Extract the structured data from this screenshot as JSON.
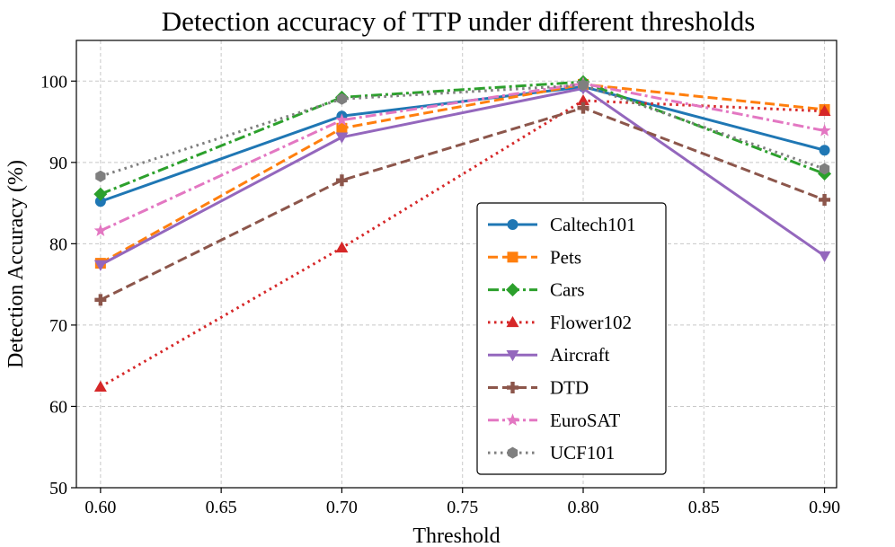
{
  "chart_data": {
    "type": "line",
    "title": "Detection accuracy of TTP under different thresholds",
    "xlabel": "Threshold",
    "ylabel": "Detection Accuracy (%)",
    "x": [
      0.6,
      0.7,
      0.8,
      0.9
    ],
    "xlim": [
      0.59,
      0.905
    ],
    "ylim": [
      50,
      105
    ],
    "xticks": [
      0.6,
      0.65,
      0.7,
      0.75,
      0.8,
      0.85,
      0.9
    ],
    "xtick_labels": [
      "0.60",
      "0.65",
      "0.70",
      "0.75",
      "0.80",
      "0.85",
      "0.90"
    ],
    "yticks": [
      50,
      60,
      70,
      80,
      90,
      100
    ],
    "ytick_labels": [
      "50",
      "60",
      "70",
      "80",
      "90",
      "100"
    ],
    "grid": true,
    "legend_position": "center-right",
    "series": [
      {
        "name": "Caltech101",
        "values": [
          85.2,
          95.7,
          99.3,
          91.5
        ],
        "color": "#1f77b4",
        "dash": "solid",
        "marker": "circle"
      },
      {
        "name": "Pets",
        "values": [
          77.6,
          94.2,
          99.6,
          96.5
        ],
        "color": "#ff7f0e",
        "dash": "dashed",
        "marker": "square"
      },
      {
        "name": "Cars",
        "values": [
          86.1,
          98.0,
          99.9,
          88.6
        ],
        "color": "#2ca02c",
        "dash": "dashdot",
        "marker": "diamond"
      },
      {
        "name": "Flower102",
        "values": [
          62.4,
          79.5,
          97.6,
          96.3
        ],
        "color": "#d62728",
        "dash": "dotted",
        "marker": "triangle-up"
      },
      {
        "name": "Aircraft",
        "values": [
          77.4,
          93.1,
          99.1,
          78.5
        ],
        "color": "#9467bd",
        "dash": "solid",
        "marker": "triangle-down"
      },
      {
        "name": "DTD",
        "values": [
          73.1,
          87.8,
          96.7,
          85.4
        ],
        "color": "#8c564b",
        "dash": "dashed",
        "marker": "plus"
      },
      {
        "name": "EuroSAT",
        "values": [
          81.6,
          95.2,
          99.7,
          93.9
        ],
        "color": "#e377c2",
        "dash": "dashdot",
        "marker": "star"
      },
      {
        "name": "UCF101",
        "values": [
          88.3,
          97.8,
          99.5,
          89.2
        ],
        "color": "#7f7f7f",
        "dash": "dotted",
        "marker": "hexagon"
      }
    ]
  }
}
